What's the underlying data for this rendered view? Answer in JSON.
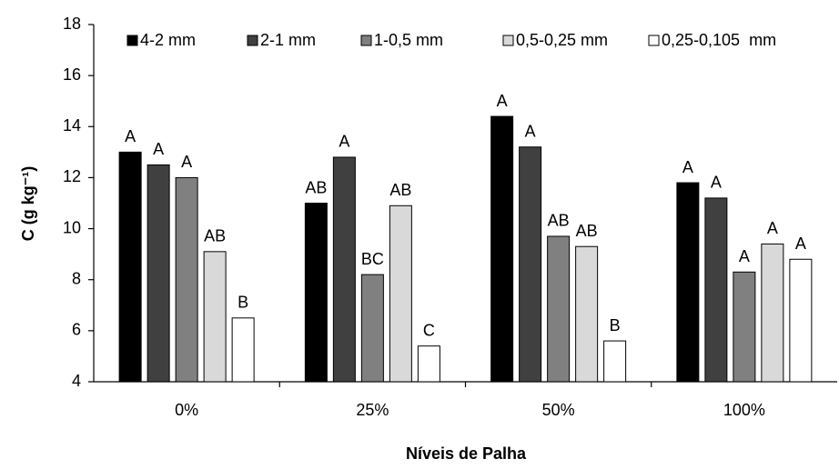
{
  "chart_data": {
    "type": "bar",
    "x_label": "Níveis de Palha",
    "y_label": "C (g kg⁻¹)",
    "categories": [
      "0%",
      "25%",
      "50%",
      "100%"
    ],
    "series": [
      {
        "name": "4-2 mm",
        "color": "#000000",
        "values": [
          13.0,
          11.0,
          14.4,
          11.8
        ],
        "letters": [
          "A",
          "AB",
          "A",
          "A"
        ]
      },
      {
        "name": "2-1 mm",
        "color": "#404040",
        "values": [
          12.5,
          12.8,
          13.2,
          11.2
        ],
        "letters": [
          "A",
          "A",
          "A",
          "A"
        ]
      },
      {
        "name": "1-0,5 mm",
        "color": "#808080",
        "values": [
          12.0,
          8.2,
          9.7,
          8.3
        ],
        "letters": [
          "A",
          "BC",
          "AB",
          "A"
        ]
      },
      {
        "name": "0,5-0,25 mm",
        "color": "#d9d9d9",
        "values": [
          9.1,
          10.9,
          9.3,
          9.4
        ],
        "letters": [
          "AB",
          "AB",
          "AB",
          "A"
        ]
      },
      {
        "name": "0,25-0,105  mm",
        "color": "#ffffff",
        "values": [
          6.5,
          5.4,
          5.6,
          8.8
        ],
        "letters": [
          "B",
          "C",
          "B",
          "A"
        ]
      }
    ],
    "ylim": [
      4,
      18
    ],
    "yticks": [
      4,
      6,
      8,
      10,
      12,
      14,
      16,
      18
    ],
    "grid": false,
    "legend": "top"
  }
}
